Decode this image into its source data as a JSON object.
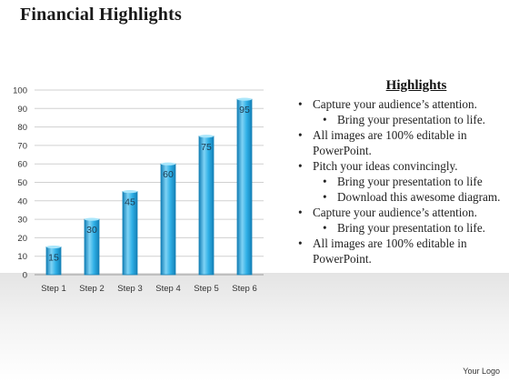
{
  "title": "Financial Highlights",
  "highlights": {
    "heading": "Highlights",
    "items": [
      {
        "text": "Capture your audience’s attention.",
        "level": 1
      },
      {
        "text": "Bring your presentation to life.",
        "level": 2
      },
      {
        "text": "All images are 100% editable in PowerPoint.",
        "level": 1
      },
      {
        "text": "Pitch your ideas convincingly.",
        "level": 1
      },
      {
        "text": "Bring your presentation to life",
        "level": 2
      },
      {
        "text": "Download this awesome diagram.",
        "level": 2
      },
      {
        "text": "Capture your audience’s attention.",
        "level": 1
      },
      {
        "text": "Bring your presentation to life.",
        "level": 2
      },
      {
        "text": "All images are 100% editable in PowerPoint.",
        "level": 1
      }
    ]
  },
  "logo": "Your Logo",
  "colors": {
    "bar": "#29a3dc",
    "bar_light": "#7fd3f5",
    "bar_dark": "#1480b8"
  },
  "chart_data": {
    "type": "bar",
    "categories": [
      "Step 1",
      "Step 2",
      "Step 3",
      "Step 4",
      "Step 5",
      "Step 6"
    ],
    "values": [
      15,
      30,
      45,
      60,
      75,
      95
    ],
    "ylim": [
      0,
      100
    ],
    "yticks": [
      0,
      10,
      20,
      30,
      40,
      50,
      60,
      70,
      80,
      90,
      100
    ],
    "grid": true,
    "data_labels": true,
    "title": "",
    "xlabel": "",
    "ylabel": ""
  }
}
